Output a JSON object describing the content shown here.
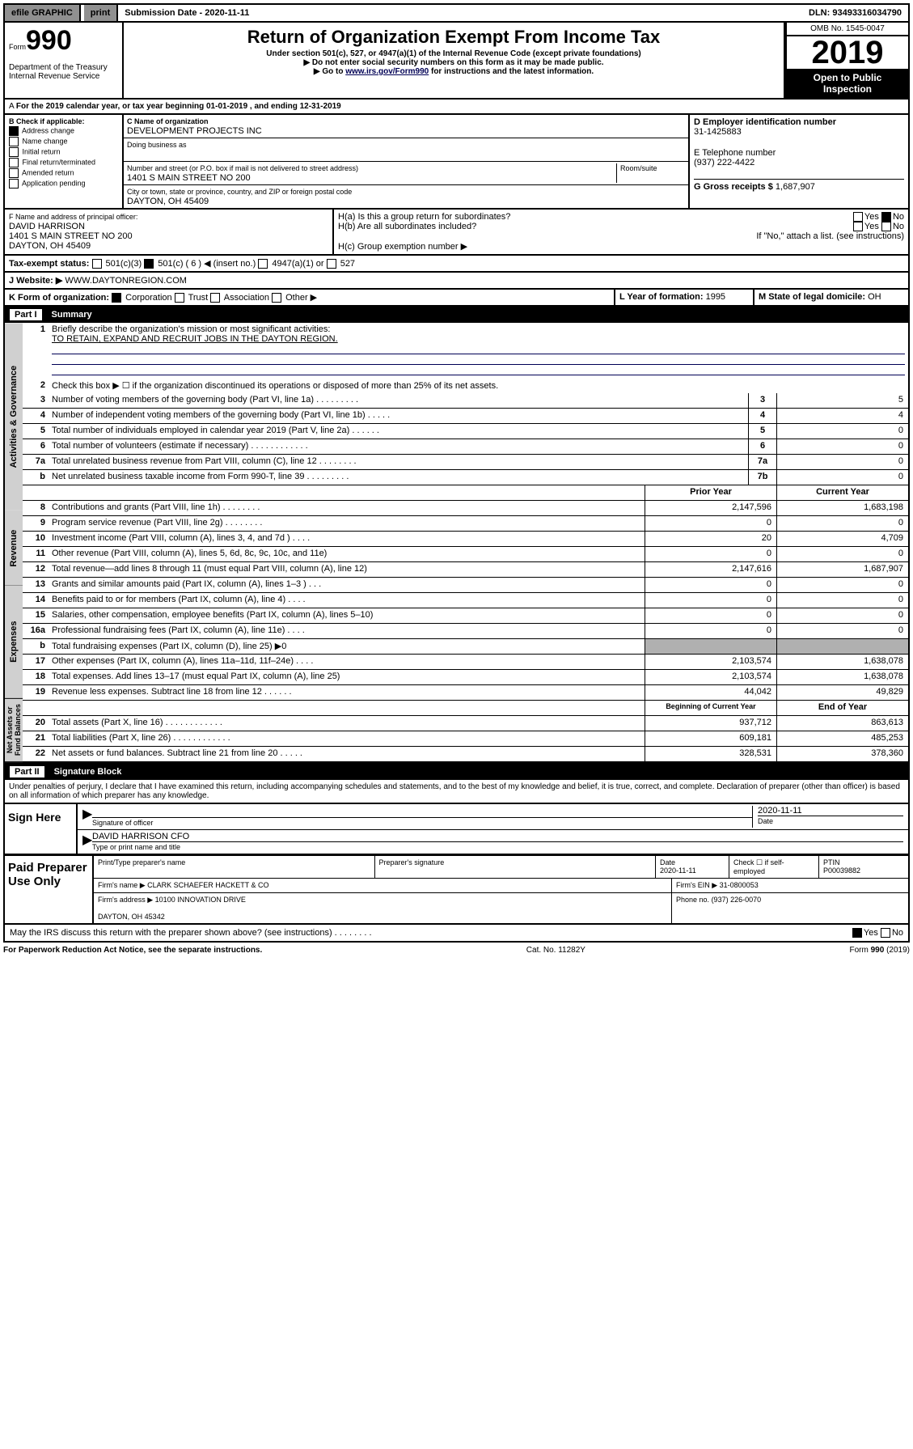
{
  "topbar": {
    "efile": "efile GRAPHIC",
    "print": "print",
    "subdate_lbl": "Submission Date - ",
    "subdate": "2020-11-11",
    "dln_lbl": "DLN: ",
    "dln": "93493316034790"
  },
  "header": {
    "form_lbl": "Form",
    "form_no": "990",
    "title": "Return of Organization Exempt From Income Tax",
    "subtitle": "Under section 501(c), 527, or 4947(a)(1) of the Internal Revenue Code (except private foundations)",
    "note1": "Do not enter social security numbers on this form as it may be made public.",
    "note2_pre": "Go to ",
    "note2_link": "www.irs.gov/Form990",
    "note2_post": " for instructions and the latest information.",
    "dept": "Department of the Treasury\nInternal Revenue Service",
    "omb": "OMB No. 1545-0047",
    "year": "2019",
    "open": "Open to Public Inspection"
  },
  "period": {
    "text": "For the 2019 calendar year, or tax year beginning 01-01-2019   , and ending 12-31-2019"
  },
  "box_b": {
    "label": "B Check if applicable:",
    "items": [
      "Address change",
      "Name change",
      "Initial return",
      "Final return/terminated",
      "Amended return",
      "Application pending"
    ],
    "checked": [
      true,
      false,
      false,
      false,
      false,
      false
    ]
  },
  "box_c": {
    "name_lbl": "C Name of organization",
    "name": "DEVELOPMENT PROJECTS INC",
    "dba_lbl": "Doing business as",
    "dba": "",
    "addr_lbl": "Number and street (or P.O. box if mail is not delivered to street address)",
    "room_lbl": "Room/suite",
    "addr": "1401 S MAIN STREET NO 200",
    "city_lbl": "City or town, state or province, country, and ZIP or foreign postal code",
    "city": "DAYTON, OH  45409"
  },
  "box_d": {
    "lbl": "D Employer identification number",
    "val": "31-1425883"
  },
  "box_e": {
    "lbl": "E Telephone number",
    "val": "(937) 222-4422"
  },
  "box_g": {
    "lbl": "G Gross receipts $",
    "val": "1,687,907"
  },
  "box_f": {
    "lbl": "F  Name and address of principal officer:",
    "name": "DAVID HARRISON",
    "addr": "1401 S MAIN STREET NO 200\nDAYTON, OH  45409"
  },
  "box_h": {
    "a": "H(a)  Is this a group return for subordinates?",
    "b": "H(b)  Are all subordinates included?",
    "b_note": "If \"No,\" attach a list. (see instructions)",
    "c": "H(c)  Group exemption number ▶",
    "yes": "Yes",
    "no": "No"
  },
  "tax_status": {
    "lbl": "Tax-exempt status:",
    "opts": [
      "501(c)(3)",
      "501(c) ( 6 ) ◀ (insert no.)",
      "4947(a)(1) or",
      "527"
    ],
    "checked": [
      false,
      true,
      false,
      false
    ]
  },
  "box_j": {
    "lbl": "J   Website: ▶",
    "val": "WWW.DAYTONREGION.COM"
  },
  "box_k": {
    "lbl": "K Form of organization:",
    "opts": [
      "Corporation",
      "Trust",
      "Association",
      "Other ▶"
    ],
    "checked": [
      true,
      false,
      false,
      false
    ]
  },
  "box_l": {
    "lbl": "L Year of formation:",
    "val": "1995"
  },
  "box_m": {
    "lbl": "M State of legal domicile:",
    "val": "OH"
  },
  "part1": {
    "num": "Part I",
    "title": "Summary"
  },
  "summary": {
    "q1": "Briefly describe the organization's mission or most significant activities:",
    "q1_ans": "TO RETAIN, EXPAND AND RECRUIT JOBS IN THE DAYTON REGION.",
    "q2": "Check this box ▶ ☐  if the organization discontinued its operations or disposed of more than 25% of its net assets.",
    "sections": {
      "gov": "Activities & Governance",
      "rev": "Revenue",
      "exp": "Expenses",
      "net": "Net Assets or Fund Balances"
    },
    "gov_rows": [
      {
        "n": "3",
        "d": "Number of voting members of the governing body (Part VI, line 1a)  .    .    .    .    .    .    .    .    .",
        "b": "3",
        "v": "5"
      },
      {
        "n": "4",
        "d": "Number of independent voting members of the governing body (Part VI, line 1b)  .    .   .    .    .",
        "b": "4",
        "v": "4"
      },
      {
        "n": "5",
        "d": "Total number of individuals employed in calendar year 2019 (Part V, line 2a)  .    .    .    .    .    .",
        "b": "5",
        "v": "0"
      },
      {
        "n": "6",
        "d": "Total number of volunteers (estimate if necessary)  .    .    .    .    .    .    .    .    .    .    .    .",
        "b": "6",
        "v": "0"
      },
      {
        "n": "7a",
        "d": "Total unrelated business revenue from Part VIII, column (C), line 12  .    .    .    .    .    .    .    .",
        "b": "7a",
        "v": "0"
      },
      {
        "n": "b",
        "d": "Net unrelated business taxable income from Form 990-T, line 39  .    .    .    .    .    .    .    .    .",
        "b": "7b",
        "v": "0"
      }
    ],
    "col_hdr": {
      "prior": "Prior Year",
      "current": "Current Year"
    },
    "rev_rows": [
      {
        "n": "8",
        "d": "Contributions and grants (Part VIII, line 1h)   .    .    .    .    .    .    .    .",
        "p": "2,147,596",
        "c": "1,683,198"
      },
      {
        "n": "9",
        "d": "Program service revenue (Part VIII, line 2g)   .    .    .    .    .    .    .   .",
        "p": "0",
        "c": "0"
      },
      {
        "n": "10",
        "d": "Investment income (Part VIII, column (A), lines 3, 4, and 7d )  .    .    .   .",
        "p": "20",
        "c": "4,709"
      },
      {
        "n": "11",
        "d": "Other revenue (Part VIII, column (A), lines 5, 6d, 8c, 9c, 10c, and 11e)",
        "p": "0",
        "c": "0"
      },
      {
        "n": "12",
        "d": "Total revenue—add lines 8 through 11 (must equal Part VIII, column (A), line 12)",
        "p": "2,147,616",
        "c": "1,687,907"
      }
    ],
    "exp_rows": [
      {
        "n": "13",
        "d": "Grants and similar amounts paid (Part IX, column (A), lines 1–3 )  .    .    .",
        "p": "0",
        "c": "0"
      },
      {
        "n": "14",
        "d": "Benefits paid to or for members (Part IX, column (A), line 4)  .    .    .    .",
        "p": "0",
        "c": "0"
      },
      {
        "n": "15",
        "d": "Salaries, other compensation, employee benefits (Part IX, column (A), lines 5–10)",
        "p": "0",
        "c": "0"
      },
      {
        "n": "16a",
        "d": "Professional fundraising fees (Part IX, column (A), line 11e)   .    .    .    .",
        "p": "0",
        "c": "0"
      },
      {
        "n": "b",
        "d": "Total fundraising expenses (Part IX, column (D), line 25) ▶0",
        "p": "gray",
        "c": "gray"
      },
      {
        "n": "17",
        "d": "Other expenses (Part IX, column (A), lines 11a–11d, 11f–24e)  .    .    .    .",
        "p": "2,103,574",
        "c": "1,638,078"
      },
      {
        "n": "18",
        "d": "Total expenses. Add lines 13–17 (must equal Part IX, column (A), line 25)",
        "p": "2,103,574",
        "c": "1,638,078"
      },
      {
        "n": "19",
        "d": "Revenue less expenses. Subtract line 18 from line 12  .    .    .    .    .    .",
        "p": "44,042",
        "c": "49,829"
      }
    ],
    "net_hdr": {
      "begin": "Beginning of Current Year",
      "end": "End of Year"
    },
    "net_rows": [
      {
        "n": "20",
        "d": "Total assets (Part X, line 16)  .    .    .    .    .    .    .    .    .    .    .    .",
        "p": "937,712",
        "c": "863,613"
      },
      {
        "n": "21",
        "d": "Total liabilities (Part X, line 26)  .    .    .    .    .    .    .    .    .    .    .    .",
        "p": "609,181",
        "c": "485,253"
      },
      {
        "n": "22",
        "d": "Net assets or fund balances. Subtract line 21 from line 20  .    .    .    .    .",
        "p": "328,531",
        "c": "378,360"
      }
    ]
  },
  "part2": {
    "num": "Part II",
    "title": "Signature Block"
  },
  "sig": {
    "perjury": "Under penalties of perjury, I declare that I have examined this return, including accompanying schedules and statements, and to the best of my knowledge and belief, it is true, correct, and complete. Declaration of preparer (other than officer) is based on all information of which preparer has any knowledge.",
    "sign_here": "Sign Here",
    "sig_officer": "Signature of officer",
    "sig_date": "2020-11-11",
    "date_lbl": "Date",
    "name": "DAVID HARRISON CFO",
    "name_lbl": "Type or print name and title"
  },
  "paid": {
    "title": "Paid Preparer Use Only",
    "prep_name_lbl": "Print/Type preparer's name",
    "prep_sig_lbl": "Preparer's signature",
    "date_lbl": "Date",
    "date": "2020-11-11",
    "check_lbl": "Check ☐ if self-employed",
    "ptin_lbl": "PTIN",
    "ptin": "P00039882",
    "firm_name_lbl": "Firm's name    ▶",
    "firm_name": "CLARK SCHAEFER HACKETT & CO",
    "firm_ein_lbl": "Firm's EIN ▶",
    "firm_ein": "31-0800053",
    "firm_addr_lbl": "Firm's address ▶",
    "firm_addr": "10100 INNOVATION DRIVE\n\nDAYTON, OH  45342",
    "phone_lbl": "Phone no.",
    "phone": "(937) 226-0070"
  },
  "discuss": {
    "q": "May the IRS discuss this return with the preparer shown above? (see instructions)   .    .    .    .    .    .    .    .",
    "yes": "Yes",
    "no": "No"
  },
  "footer": {
    "left": "For Paperwork Reduction Act Notice, see the separate instructions.",
    "mid": "Cat. No. 11282Y",
    "right": "Form 990 (2019)"
  }
}
